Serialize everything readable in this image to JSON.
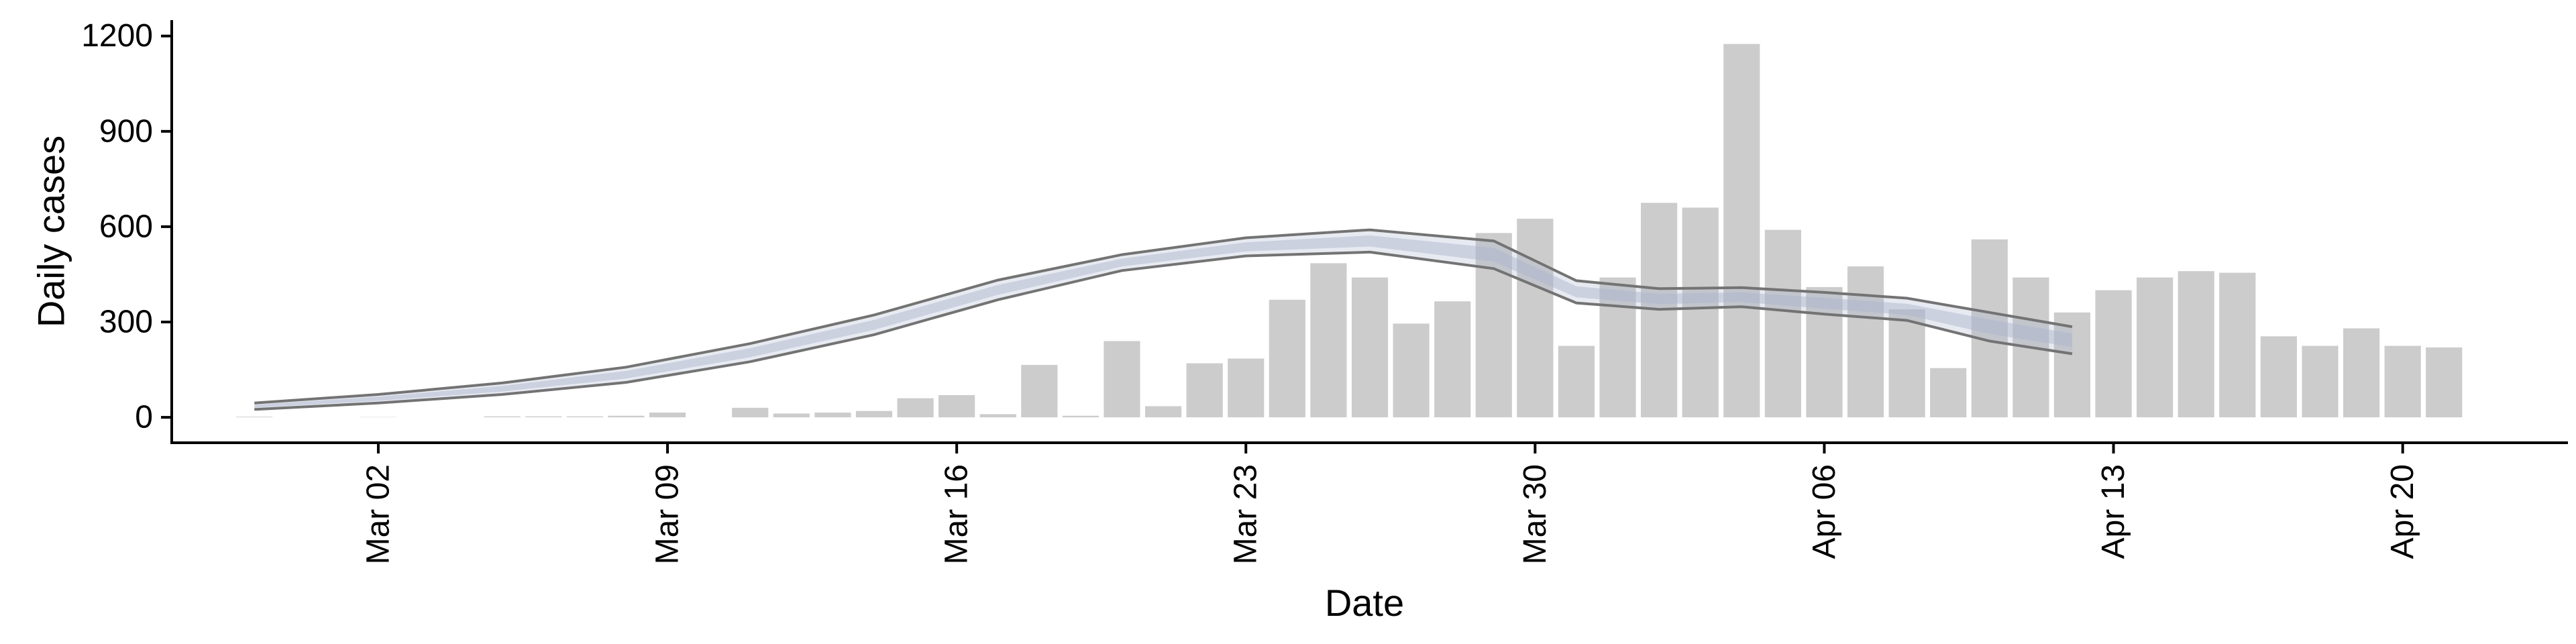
{
  "chart_data": {
    "type": "bar",
    "xlabel": "Date",
    "ylabel": "Daily cases",
    "ylim": [
      -80,
      1250
    ],
    "yticks": [
      0,
      300,
      600,
      900,
      1200
    ],
    "xticks": [
      {
        "date": "2020-03-02",
        "label": "Mar 02"
      },
      {
        "date": "2020-03-09",
        "label": "Mar 09"
      },
      {
        "date": "2020-03-16",
        "label": "Mar 16"
      },
      {
        "date": "2020-03-23",
        "label": "Mar 23"
      },
      {
        "date": "2020-03-30",
        "label": "Mar 30"
      },
      {
        "date": "2020-04-06",
        "label": "Apr 06"
      },
      {
        "date": "2020-04-13",
        "label": "Apr 13"
      },
      {
        "date": "2020-04-20",
        "label": "Apr 20"
      }
    ],
    "xlim": [
      "2020-02-26",
      "2020-04-24"
    ],
    "grid": false,
    "colors": {
      "bars": "#cccccc",
      "band": "#aab4cc",
      "bound": "#737373",
      "axis": "#000000"
    },
    "series": [
      {
        "type": "bar",
        "dates": [
          "2020-02-28",
          "2020-02-29",
          "2020-03-01",
          "2020-03-02",
          "2020-03-03",
          "2020-03-04",
          "2020-03-05",
          "2020-03-06",
          "2020-03-07",
          "2020-03-08",
          "2020-03-09",
          "2020-03-10",
          "2020-03-11",
          "2020-03-12",
          "2020-03-13",
          "2020-03-14",
          "2020-03-15",
          "2020-03-16",
          "2020-03-17",
          "2020-03-18",
          "2020-03-19",
          "2020-03-20",
          "2020-03-21",
          "2020-03-22",
          "2020-03-23",
          "2020-03-24",
          "2020-03-25",
          "2020-03-26",
          "2020-03-27",
          "2020-03-28",
          "2020-03-29",
          "2020-03-30",
          "2020-03-31",
          "2020-04-01",
          "2020-04-02",
          "2020-04-03",
          "2020-04-04",
          "2020-04-05",
          "2020-04-06",
          "2020-04-07",
          "2020-04-08",
          "2020-04-09",
          "2020-04-10",
          "2020-04-11",
          "2020-04-12",
          "2020-04-13",
          "2020-04-14",
          "2020-04-15",
          "2020-04-16",
          "2020-04-17",
          "2020-04-18",
          "2020-04-19",
          "2020-04-20",
          "2020-04-21"
        ],
        "values": [
          2,
          0,
          0,
          1,
          0,
          0,
          3,
          3,
          3,
          5,
          15,
          0,
          30,
          12,
          15,
          20,
          60,
          70,
          10,
          165,
          5,
          240,
          35,
          170,
          185,
          370,
          485,
          440,
          295,
          365,
          580,
          625,
          225,
          440,
          675,
          660,
          1175,
          590,
          410,
          475,
          340,
          155,
          560,
          440,
          330,
          400,
          440,
          460,
          455,
          255,
          225,
          280,
          225,
          220
        ]
      },
      {
        "type": "band",
        "dates": [
          "2020-02-28",
          "2020-03-02",
          "2020-03-05",
          "2020-03-08",
          "2020-03-11",
          "2020-03-14",
          "2020-03-17",
          "2020-03-20",
          "2020-03-23",
          "2020-03-26",
          "2020-03-29",
          "2020-03-31",
          "2020-04-02",
          "2020-04-04",
          "2020-04-06",
          "2020-04-08",
          "2020-04-10",
          "2020-04-12"
        ],
        "upper": [
          45,
          72,
          108,
          158,
          232,
          322,
          432,
          512,
          565,
          590,
          555,
          430,
          405,
          408,
          393,
          375,
          330,
          285
        ],
        "lower": [
          25,
          45,
          72,
          110,
          175,
          260,
          370,
          462,
          508,
          520,
          468,
          360,
          340,
          348,
          325,
          305,
          240,
          200
        ]
      }
    ]
  }
}
